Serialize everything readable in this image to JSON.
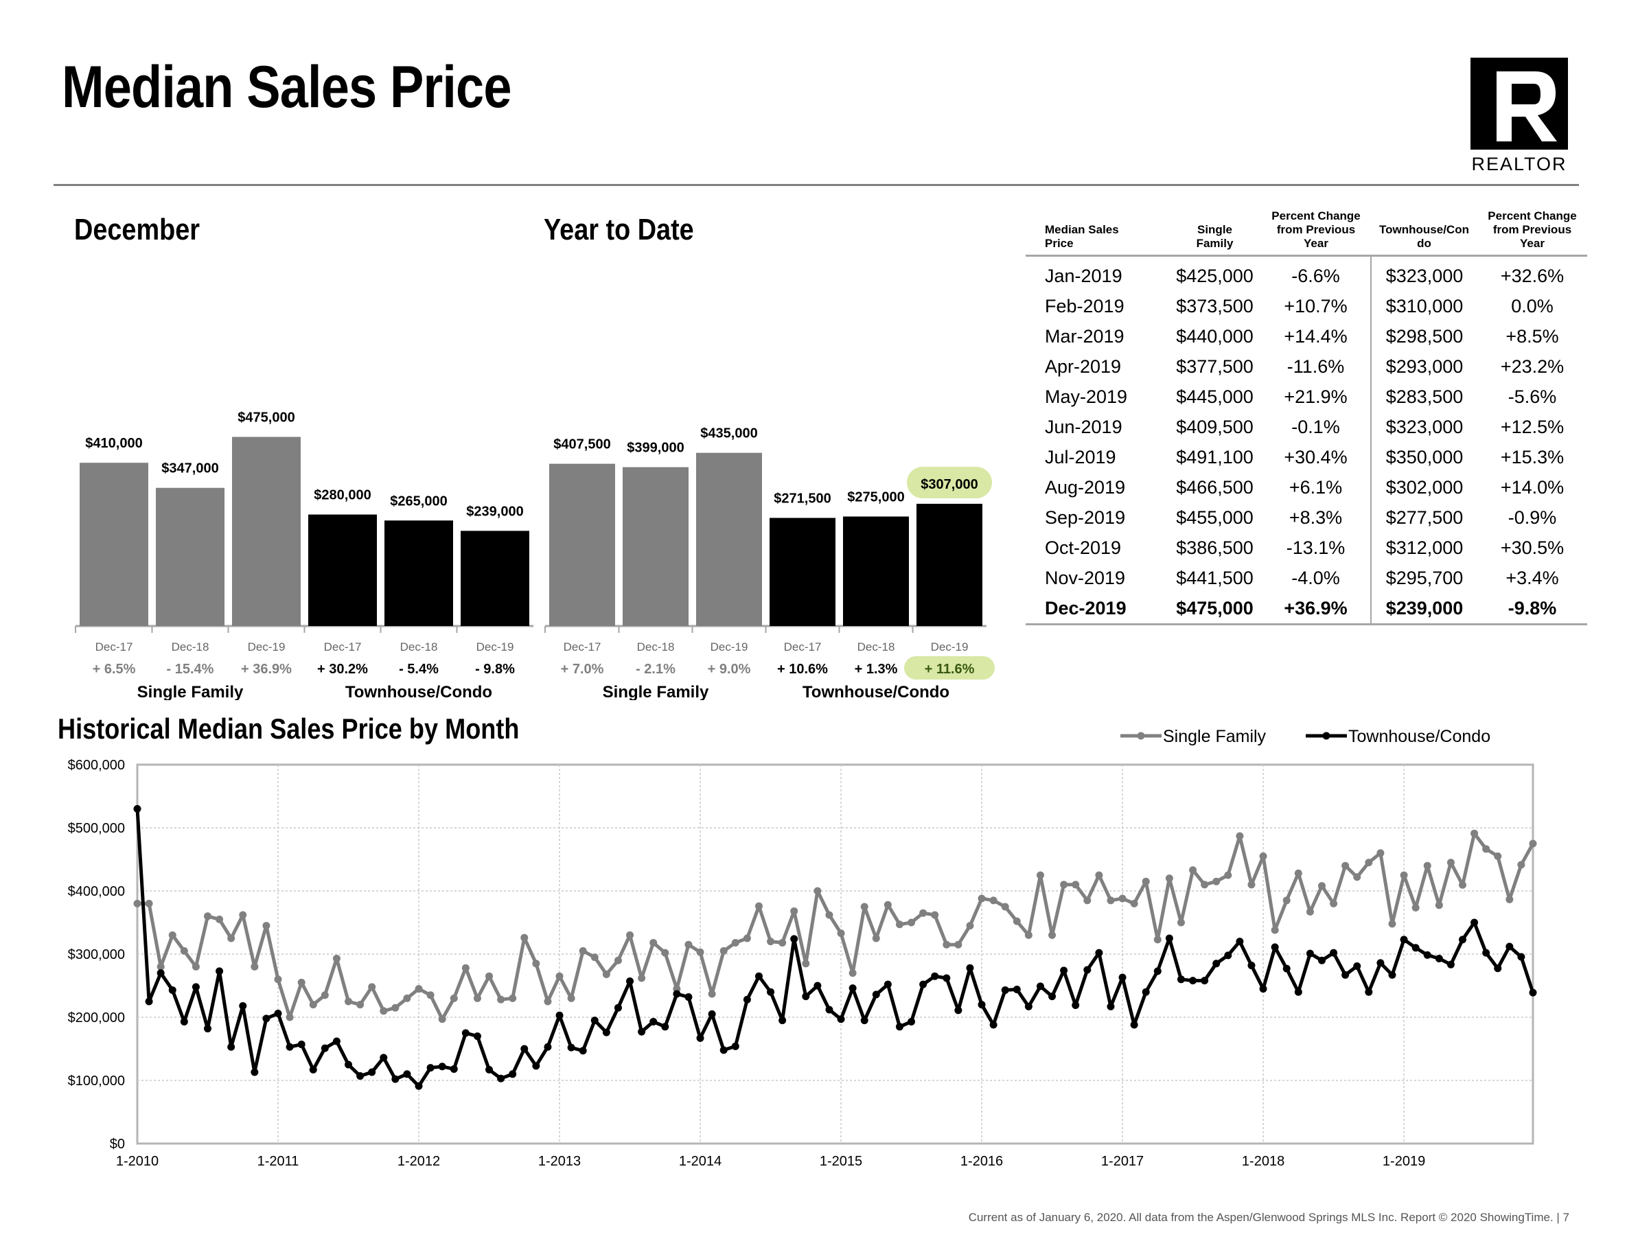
{
  "page": {
    "title": "Median Sales Price",
    "logo_text": "REALTOR",
    "footer": "Current as of January 6, 2020. All data from the Aspen/Glenwood Springs MLS Inc. Report © 2020 ShowingTime.  |  7"
  },
  "colors": {
    "single_family": "#808080",
    "townhouse": "#000000",
    "highlight": "#d9e8a5"
  },
  "chart_data": [
    {
      "type": "bar",
      "title": "December",
      "groups": [
        {
          "name": "Single Family",
          "color": "#808080",
          "categories": [
            "Dec-17",
            "Dec-18",
            "Dec-19"
          ],
          "values": [
            410000,
            347000,
            475000
          ],
          "labels": [
            "$410,000",
            "$347,000",
            "$475,000"
          ],
          "changes": [
            "+ 6.5%",
            "- 15.4%",
            "+ 36.9%"
          ]
        },
        {
          "name": "Townhouse/Condo",
          "color": "#000000",
          "categories": [
            "Dec-17",
            "Dec-18",
            "Dec-19"
          ],
          "values": [
            280000,
            265000,
            239000
          ],
          "labels": [
            "$280,000",
            "$265,000",
            "$239,000"
          ],
          "changes": [
            "+ 30.2%",
            "- 5.4%",
            "- 9.8%"
          ]
        }
      ]
    },
    {
      "type": "bar",
      "title": "Year to Date",
      "groups": [
        {
          "name": "Single Family",
          "color": "#808080",
          "categories": [
            "Dec-17",
            "Dec-18",
            "Dec-19"
          ],
          "values": [
            407500,
            399000,
            435000
          ],
          "labels": [
            "$407,500",
            "$399,000",
            "$435,000"
          ],
          "changes": [
            "+ 7.0%",
            "- 2.1%",
            "+ 9.0%"
          ]
        },
        {
          "name": "Townhouse/Condo",
          "color": "#000000",
          "categories": [
            "Dec-17",
            "Dec-18",
            "Dec-19"
          ],
          "values": [
            271500,
            275000,
            307000
          ],
          "labels": [
            "$271,500",
            "$275,000",
            "$307,000"
          ],
          "changes": [
            "+ 10.6%",
            "+ 1.3%",
            "+ 11.6%"
          ],
          "highlighted_index": 2
        }
      ]
    },
    {
      "type": "table",
      "columns": [
        "Median Sales Price",
        "Single Family",
        "Percent Change from Previous Year",
        "Townhouse/Condo",
        "Percent Change from Previous Year"
      ],
      "column_headers": [
        [
          "Median Sales",
          "Price"
        ],
        [
          "Single",
          "Family"
        ],
        [
          "Percent Change",
          "from Previous",
          "Year"
        ],
        [
          "Townhouse/Con",
          "do"
        ],
        [
          "Percent Change",
          "from Previous",
          "Year"
        ]
      ],
      "rows": [
        [
          "Jan-2019",
          "$425,000",
          "-6.6%",
          "$323,000",
          "+32.6%"
        ],
        [
          "Feb-2019",
          "$373,500",
          "+10.7%",
          "$310,000",
          "0.0%"
        ],
        [
          "Mar-2019",
          "$440,000",
          "+14.4%",
          "$298,500",
          "+8.5%"
        ],
        [
          "Apr-2019",
          "$377,500",
          "-11.6%",
          "$293,000",
          "+23.2%"
        ],
        [
          "May-2019",
          "$445,000",
          "+21.9%",
          "$283,500",
          "-5.6%"
        ],
        [
          "Jun-2019",
          "$409,500",
          "-0.1%",
          "$323,000",
          "+12.5%"
        ],
        [
          "Jul-2019",
          "$491,100",
          "+30.4%",
          "$350,000",
          "+15.3%"
        ],
        [
          "Aug-2019",
          "$466,500",
          "+6.1%",
          "$302,000",
          "+14.0%"
        ],
        [
          "Sep-2019",
          "$455,000",
          "+8.3%",
          "$277,500",
          "-0.9%"
        ],
        [
          "Oct-2019",
          "$386,500",
          "-13.1%",
          "$312,000",
          "+30.5%"
        ],
        [
          "Nov-2019",
          "$441,500",
          "-4.0%",
          "$295,700",
          "+3.4%"
        ]
      ],
      "total_row": [
        "Dec-2019",
        "$475,000",
        "+36.9%",
        "$239,000",
        "-9.8%"
      ]
    },
    {
      "type": "line",
      "title": "Historical Median Sales Price by Month",
      "x_tick_labels": [
        "1-2010",
        "1-2011",
        "1-2012",
        "1-2013",
        "1-2014",
        "1-2015",
        "1-2016",
        "1-2017",
        "1-2018",
        "1-2019"
      ],
      "x_start": "2010-01",
      "x_end": "2019-12",
      "y_tick_labels": [
        "$0",
        "$100,000",
        "$200,000",
        "$300,000",
        "$400,000",
        "$500,000",
        "$600,000"
      ],
      "ylim": [
        0,
        600000
      ],
      "grid": true,
      "legend_position": "top-right",
      "series": [
        {
          "name": "Single Family",
          "color": "#808080",
          "values": [
            380000,
            380000,
            280000,
            330000,
            305000,
            280000,
            360000,
            355000,
            325000,
            362000,
            280000,
            345000,
            260000,
            200000,
            255000,
            220000,
            235000,
            293000,
            225000,
            220000,
            248000,
            210000,
            215000,
            230000,
            245000,
            235000,
            197000,
            230000,
            278000,
            230000,
            265000,
            228000,
            230000,
            326000,
            285000,
            225000,
            265000,
            230000,
            305000,
            295000,
            268000,
            290000,
            330000,
            262000,
            318000,
            302000,
            245000,
            315000,
            303000,
            237000,
            305000,
            318000,
            325000,
            376000,
            320000,
            318000,
            368000,
            285000,
            400000,
            362000,
            333000,
            270000,
            375000,
            325000,
            378000,
            347000,
            350000,
            365000,
            362000,
            315000,
            315000,
            345000,
            388000,
            385000,
            375000,
            352000,
            330000,
            425000,
            330000,
            410000,
            410000,
            385000,
            425000,
            385000,
            388000,
            380000,
            415000,
            323000,
            420000,
            350000,
            433000,
            410000,
            415000,
            425000,
            487000,
            410000,
            455000,
            338000,
            385000,
            428000,
            367000,
            408000,
            380000,
            440000,
            422000,
            445000,
            460000,
            348000,
            425000,
            373500,
            440000,
            377500,
            445000,
            409500,
            491100,
            466500,
            455000,
            386500,
            441500,
            475000
          ]
        },
        {
          "name": "Townhouse/Condo",
          "color": "#000000",
          "values": [
            530000,
            225000,
            270000,
            243000,
            193000,
            248000,
            182000,
            273000,
            153000,
            218000,
            113000,
            198000,
            206000,
            153000,
            157000,
            117000,
            151000,
            162000,
            125000,
            107000,
            113000,
            136000,
            102000,
            110000,
            91000,
            120000,
            122000,
            118000,
            175000,
            170000,
            117000,
            103000,
            110000,
            150000,
            123000,
            153000,
            203000,
            152000,
            147000,
            195000,
            176000,
            215000,
            257000,
            177000,
            193000,
            185000,
            237000,
            232000,
            167000,
            205000,
            148000,
            154000,
            228000,
            265000,
            240000,
            195000,
            324000,
            233000,
            250000,
            212000,
            197000,
            246000,
            195000,
            236000,
            252000,
            185000,
            193000,
            252000,
            265000,
            262000,
            211000,
            278000,
            220000,
            188000,
            243000,
            244000,
            217000,
            249000,
            233000,
            274000,
            219000,
            275000,
            302000,
            217000,
            263000,
            188000,
            240000,
            273000,
            325000,
            260000,
            258000,
            258000,
            285000,
            298000,
            320000,
            282000,
            245000,
            311000,
            277000,
            240000,
            301000,
            290000,
            302000,
            267000,
            281000,
            240000,
            286000,
            267000,
            323000,
            310000,
            298500,
            293000,
            283500,
            323000,
            350000,
            302000,
            277500,
            312000,
            295700,
            239000
          ]
        }
      ]
    }
  ]
}
